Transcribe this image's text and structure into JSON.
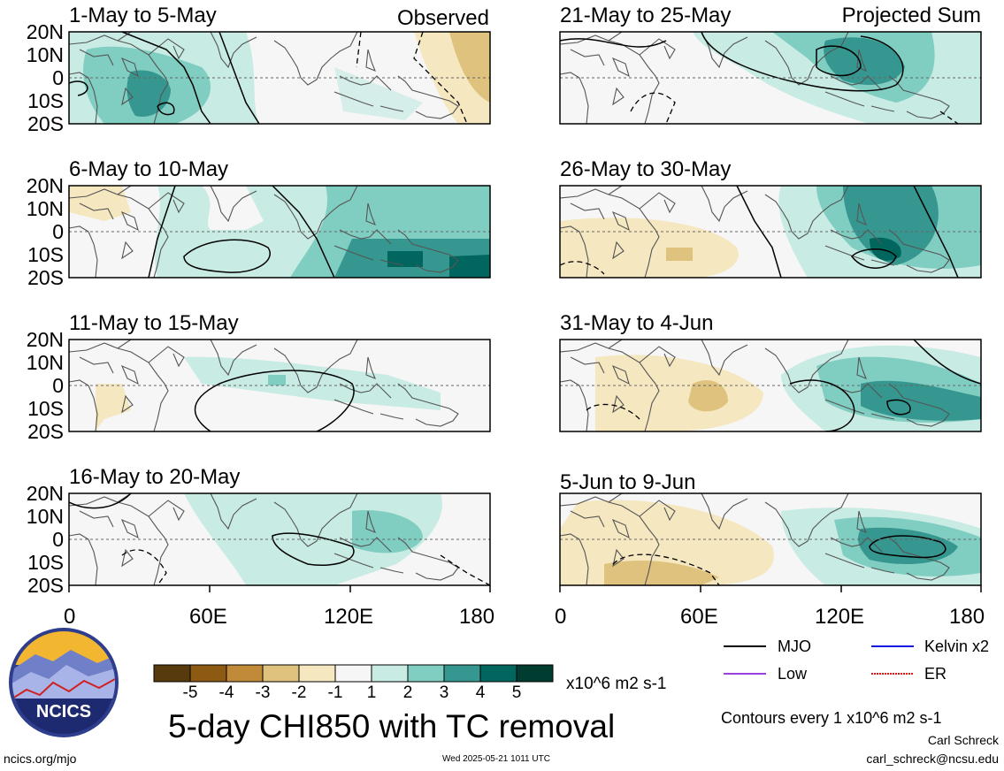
{
  "figure": {
    "title": "5-day CHI850 with TC removal",
    "units": "x10^6 m2 s-1",
    "contour_note": "Contours every 1 x10^6 m2 s-1",
    "author": "Carl Schreck",
    "email": "carl_schreck@ncsu.edu",
    "website": "ncics.org/mjo",
    "timestamp": "Wed 2025-05-21 1011 UTC",
    "logo_text": "NCICS"
  },
  "columns": [
    {
      "label": "Observed",
      "lon_ticks": [
        "0",
        "60E",
        "120E",
        "180"
      ]
    },
    {
      "label": "Projected Sum",
      "lon_ticks": [
        "0",
        "60E",
        "120E",
        "180"
      ]
    }
  ],
  "lat_ticks": [
    "20N",
    "10N",
    "0",
    "10S",
    "20S"
  ],
  "panels": [
    {
      "period": "1-May to 5-May",
      "column": "Observed"
    },
    {
      "period": "6-May to 10-May",
      "column": "Observed"
    },
    {
      "period": "11-May to 15-May",
      "column": "Observed"
    },
    {
      "period": "16-May to 20-May",
      "column": "Observed"
    },
    {
      "period": "21-May to 25-May",
      "column": "Projected Sum"
    },
    {
      "period": "26-May to 30-May",
      "column": "Projected Sum"
    },
    {
      "period": "31-May to 4-Jun",
      "column": "Projected Sum"
    },
    {
      "period": "5-Jun to 9-Jun",
      "column": "Projected Sum"
    }
  ],
  "colorbar": {
    "labels": [
      "-5",
      "-4",
      "-3",
      "-2",
      "-1",
      "1",
      "2",
      "3",
      "4",
      "5"
    ],
    "colors": [
      "#573b0e",
      "#8c5a13",
      "#c08a38",
      "#dfc27d",
      "#f5e7c0",
      "#f6f6f6",
      "#c8ebe4",
      "#80cdc1",
      "#35978f",
      "#01665e",
      "#013c30"
    ]
  },
  "legend": [
    {
      "label": "MJO",
      "color": "#000000"
    },
    {
      "label": "Kelvin x2",
      "color": "#1515e6"
    },
    {
      "label": "Low",
      "color": "#9b3fe0"
    },
    {
      "label": "ER",
      "color": "#e01818"
    }
  ]
}
